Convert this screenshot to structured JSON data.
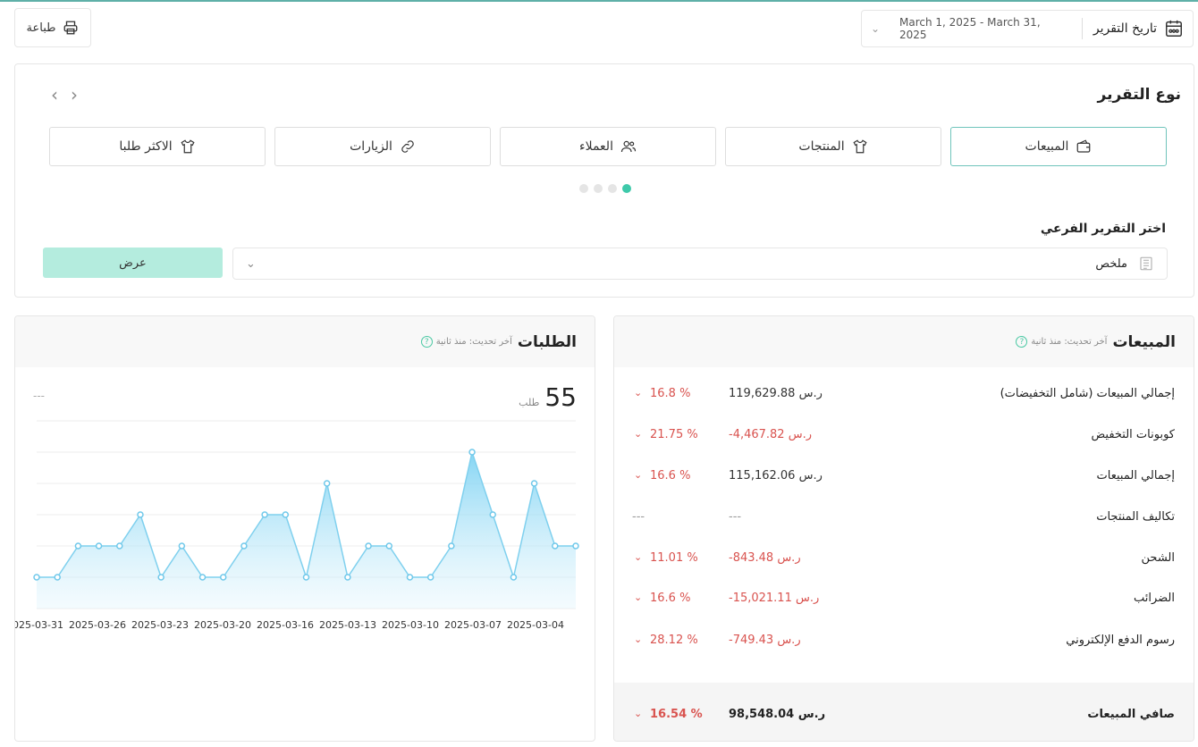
{
  "topbar": {
    "print_label": "طباعة",
    "date_label": "تاريخ التقرير",
    "date_range": "March 1, 2025 - March 31, 2025"
  },
  "report_type": {
    "title": "نوع التقرير",
    "tabs": [
      {
        "label": "المبيعات",
        "icon": "wallet-icon",
        "active": true
      },
      {
        "label": "المنتجات",
        "icon": "tshirt-icon",
        "active": false
      },
      {
        "label": "العملاء",
        "icon": "users-icon",
        "active": false
      },
      {
        "label": "الزيارات",
        "icon": "link-icon",
        "active": false
      },
      {
        "label": "الاكثر طلبا",
        "icon": "tshirt-icon",
        "active": false
      }
    ],
    "sub_report_label": "اختر التقرير الفرعي",
    "sub_report_value": "ملخص",
    "show_button": "عرض"
  },
  "sales": {
    "title": "المبيعات",
    "updated": "آخر تحديث: منذ ثانية",
    "rows": [
      {
        "name": "إجمالي المبيعات (شامل التخفيضات)",
        "amount": "119,629.88 ر.س",
        "pct": "16.8 %",
        "negative": false
      },
      {
        "name": "كوبونات التخفيض",
        "amount": "-4,467.82 ر.س",
        "pct": "21.75 %",
        "negative": true
      },
      {
        "name": "إجمالي المبيعات",
        "amount": "115,162.06 ر.س",
        "pct": "16.6 %",
        "negative": false
      },
      {
        "name": "تكاليف المنتجات",
        "amount": "---",
        "pct": "---",
        "negative": false
      },
      {
        "name": "الشحن",
        "amount": "-843.48 ر.س",
        "pct": "11.01 %",
        "negative": true
      },
      {
        "name": "الضرائب",
        "amount": "-15,021.11 ر.س",
        "pct": "16.6 %",
        "negative": true
      },
      {
        "name": "رسوم الدفع الإلكتروني",
        "amount": "-749.43 ر.س",
        "pct": "28.12 %",
        "negative": true
      }
    ],
    "net": {
      "name": "صافي المبيعات",
      "amount": "98,548.04 ر.س",
      "pct": "16.54 %"
    }
  },
  "orders": {
    "title": "الطلبات",
    "updated": "آخر تحديث: منذ ثانية",
    "count": "55",
    "unit": "طلب",
    "dash": "---"
  },
  "chart_data": {
    "type": "area",
    "x_tick_labels": [
      "2025-03-31",
      "2025-03-26",
      "2025-03-23",
      "2025-03-20",
      "2025-03-16",
      "2025-03-13",
      "2025-03-10",
      "2025-03-07",
      "2025-03-04"
    ],
    "values": [
      1,
      1,
      2,
      2,
      2,
      3,
      1,
      2,
      1,
      1,
      2,
      3,
      3,
      1,
      4,
      1,
      2,
      2,
      1,
      1,
      2,
      5,
      3,
      1,
      4,
      2,
      2
    ],
    "ylim": [
      0,
      6
    ],
    "grid": true,
    "color": "#8fd8f2"
  }
}
